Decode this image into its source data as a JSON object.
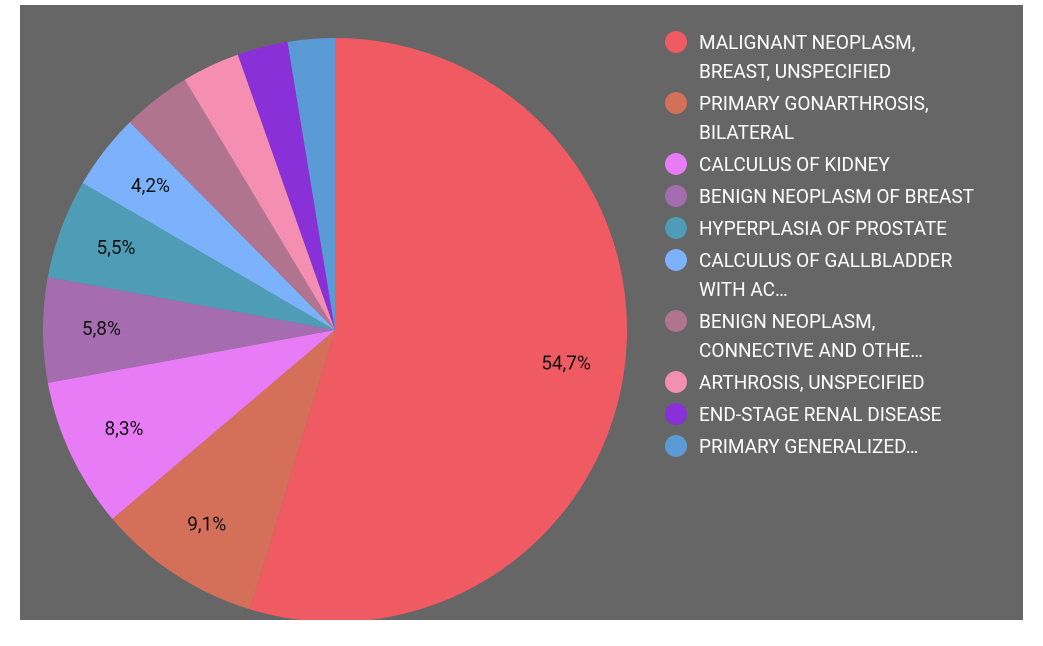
{
  "chart_data": {
    "type": "pie",
    "categories": [
      "MALIGNANT NEOPLASM, BREAST, UNSPECIFIED",
      "PRIMARY GONARTHROSIS, BILATERAL",
      "CALCULUS OF KIDNEY",
      "BENIGN NEOPLASM OF BREAST",
      "HYPERPLASIA OF PROSTATE",
      "CALCULUS OF GALLBLADDER WITH AC…",
      "BENIGN NEOPLASM, CONNECTIVE AND OTHE…",
      "ARTHROSIS, UNSPECIFIED",
      "END-STAGE RENAL DISEASE",
      "PRIMARY GENERALIZED…"
    ],
    "values": [
      54.7,
      9.1,
      8.3,
      5.8,
      5.5,
      4.2,
      3.8,
      3.2,
      2.8,
      2.6
    ],
    "value_labels": [
      "54,7%",
      "9,1%",
      "8,3%",
      "5,8%",
      "5,5%",
      "4,2%",
      null,
      null,
      null,
      null
    ],
    "colors": [
      "#f05a62",
      "#d4705a",
      "#e87cf6",
      "#a66cb0",
      "#4f9cb6",
      "#7cb2fb",
      "#b0748f",
      "#f48fb1",
      "#8a30d8",
      "#5b9bd5"
    ],
    "legend": "right"
  }
}
